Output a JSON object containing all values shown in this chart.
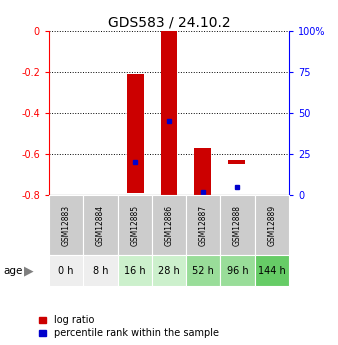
{
  "title": "GDS583 / 24.10.2",
  "samples": [
    "GSM12883",
    "GSM12884",
    "GSM12885",
    "GSM12886",
    "GSM12887",
    "GSM12888",
    "GSM12889"
  ],
  "ages": [
    "0 h",
    "8 h",
    "16 h",
    "28 h",
    "52 h",
    "96 h",
    "144 h"
  ],
  "log_ratio_bottoms": [
    0,
    0,
    -0.79,
    -0.8,
    -0.8,
    -0.65,
    0
  ],
  "log_ratio_tops": [
    0,
    0,
    -0.21,
    0.0,
    -0.57,
    -0.63,
    0
  ],
  "percentile_ranks": [
    null,
    null,
    20.0,
    45.0,
    2.0,
    5.0,
    null
  ],
  "ylim": [
    -0.8,
    0.0
  ],
  "yticks": [
    0,
    -0.2,
    -0.4,
    -0.6,
    -0.8
  ],
  "ytick_labels": [
    "0",
    "-0.2",
    "-0.4",
    "-0.6",
    "-0.8"
  ],
  "right_yticks": [
    0,
    25,
    50,
    75,
    100
  ],
  "right_ytick_labels": [
    "0",
    "25",
    "50",
    "75",
    "100%"
  ],
  "bar_color": "#cc0000",
  "dot_color": "#0000cc",
  "age_bg_colors": [
    "#eeeeee",
    "#eeeeee",
    "#ccf0cc",
    "#ccf0cc",
    "#99dd99",
    "#99dd99",
    "#66cc66"
  ],
  "sample_bg_color": "#cccccc",
  "legend_log_ratio": "log ratio",
  "legend_percentile": "percentile rank within the sample",
  "bar_width": 0.5
}
